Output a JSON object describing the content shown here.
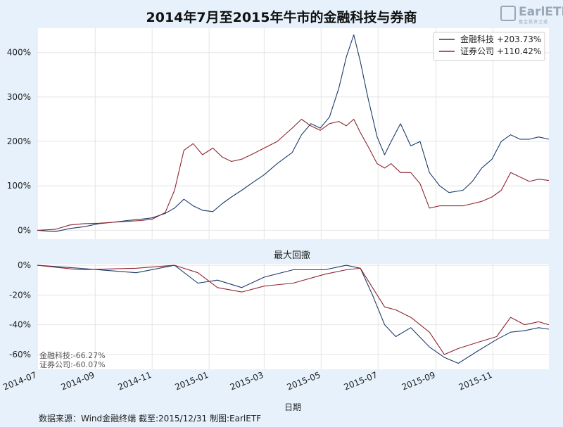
{
  "title": "2014年7月至2015年牛市的金融科技与券商",
  "logo": {
    "text": "EarlETF",
    "sub": "基金投资之道"
  },
  "source": "数据来源：Wind金融终端 截至:2015/12/31 制图:EarlETF",
  "colors": {
    "fintech": "#1b3a6b",
    "broker": "#8e2430",
    "background": "#e6f1fb",
    "plot_bg": "#ffffff"
  },
  "chart_data": [
    {
      "type": "line",
      "title": "",
      "ylabel": "",
      "ylim": [
        -20,
        455
      ],
      "yticks": [
        0,
        100,
        200,
        300,
        400
      ],
      "ytick_labels": [
        "0%",
        "100%",
        "200%",
        "300%",
        "400%"
      ],
      "grid": true,
      "legend_position": "top-right",
      "legend": [
        "金融科技  +203.73%",
        "证券公司  +110.42%"
      ],
      "x": [
        "2014-07-01",
        "2014-07-20",
        "2014-08-05",
        "2014-08-20",
        "2014-09-05",
        "2014-09-20",
        "2014-10-05",
        "2014-10-20",
        "2014-11-01",
        "2014-11-15",
        "2014-11-25",
        "2014-12-05",
        "2014-12-15",
        "2014-12-25",
        "2015-01-05",
        "2015-01-15",
        "2015-01-25",
        "2015-02-05",
        "2015-02-15",
        "2015-03-01",
        "2015-03-15",
        "2015-03-31",
        "2015-04-10",
        "2015-04-20",
        "2015-04-30",
        "2015-05-10",
        "2015-05-20",
        "2015-05-28",
        "2015-06-05",
        "2015-06-12",
        "2015-06-20",
        "2015-06-30",
        "2015-07-08",
        "2015-07-15",
        "2015-07-25",
        "2015-08-05",
        "2015-08-15",
        "2015-08-25",
        "2015-09-05",
        "2015-09-15",
        "2015-09-30",
        "2015-10-10",
        "2015-10-20",
        "2015-10-31",
        "2015-11-10",
        "2015-11-20",
        "2015-11-30",
        "2015-12-10",
        "2015-12-20",
        "2015-12-31"
      ],
      "series": [
        {
          "name": "金融科技",
          "color": "#1b3a6b",
          "values": [
            0,
            -3,
            4,
            8,
            15,
            18,
            22,
            25,
            28,
            38,
            50,
            70,
            55,
            45,
            42,
            60,
            75,
            90,
            105,
            125,
            150,
            175,
            215,
            240,
            230,
            255,
            320,
            390,
            440,
            380,
            300,
            210,
            170,
            200,
            240,
            190,
            200,
            130,
            100,
            85,
            90,
            110,
            140,
            160,
            200,
            215,
            205,
            205,
            210,
            205
          ]
        },
        {
          "name": "证券公司",
          "color": "#8e2430",
          "values": [
            0,
            2,
            12,
            15,
            16,
            18,
            20,
            22,
            25,
            40,
            90,
            180,
            195,
            170,
            185,
            165,
            155,
            160,
            170,
            185,
            200,
            230,
            250,
            235,
            225,
            240,
            245,
            235,
            250,
            220,
            190,
            150,
            140,
            150,
            130,
            130,
            105,
            50,
            55,
            55,
            55,
            60,
            65,
            75,
            90,
            130,
            120,
            110,
            115,
            112
          ]
        }
      ]
    },
    {
      "type": "line",
      "title": "最大回撤",
      "xlabel": "日期",
      "ylim": [
        -70,
        1
      ],
      "yticks": [
        0,
        -20,
        -40,
        -60
      ],
      "ytick_labels": [
        "0%",
        "-20%",
        "-40%",
        "-60%"
      ],
      "xticks": [
        "2014-07",
        "2014-09",
        "2014-11",
        "2015-01",
        "2015-03",
        "2015-05",
        "2015-07",
        "2015-09",
        "2015-11"
      ],
      "grid": true,
      "annotations": [
        "金融科技:-66.27%",
        "证券公司:-60.07%"
      ],
      "x": [
        "2014-07-01",
        "2014-08-15",
        "2014-10-15",
        "2014-11-25",
        "2014-12-20",
        "2015-01-10",
        "2015-02-05",
        "2015-03-01",
        "2015-04-01",
        "2015-05-05",
        "2015-05-28",
        "2015-06-12",
        "2015-06-25",
        "2015-07-08",
        "2015-07-20",
        "2015-08-05",
        "2015-08-25",
        "2015-09-10",
        "2015-09-25",
        "2015-10-15",
        "2015-11-05",
        "2015-11-20",
        "2015-12-05",
        "2015-12-20",
        "2015-12-31"
      ],
      "series": [
        {
          "name": "金融科技",
          "color": "#1b3a6b",
          "values": [
            0,
            -2,
            -5,
            0,
            -12,
            -10,
            -15,
            -8,
            -3,
            -3,
            0,
            -2,
            -20,
            -40,
            -48,
            -42,
            -55,
            -62,
            -66,
            -58,
            -50,
            -45,
            -44,
            -42,
            -43
          ]
        },
        {
          "name": "证券公司",
          "color": "#8e2430",
          "values": [
            0,
            -3,
            -2,
            0,
            -5,
            -15,
            -18,
            -14,
            -12,
            -6,
            -3,
            -2,
            -15,
            -28,
            -30,
            -35,
            -45,
            -60,
            -56,
            -52,
            -48,
            -35,
            -40,
            -38,
            -40
          ]
        }
      ]
    }
  ]
}
